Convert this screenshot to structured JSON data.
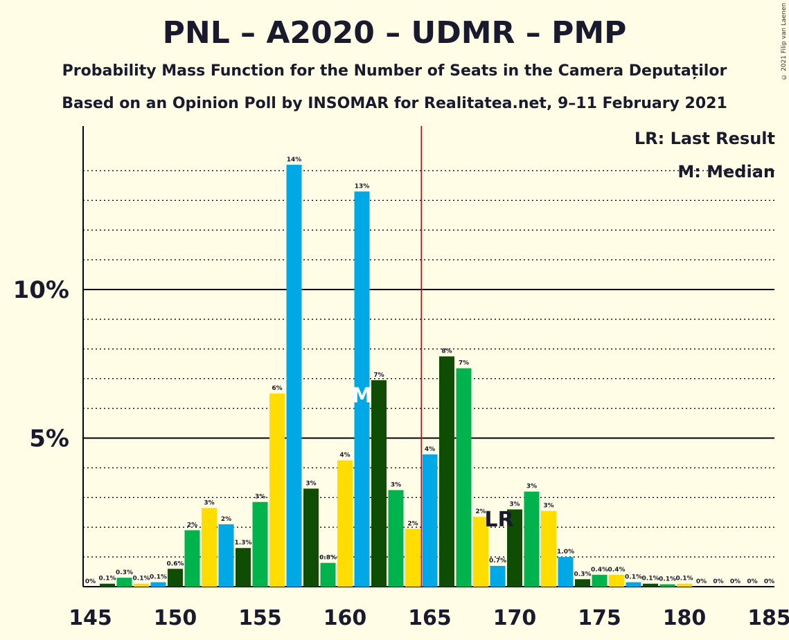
{
  "header": {
    "title": "PNL – A2020 – UDMR – PMP",
    "subtitle": "Probability Mass Function for the Number of Seats in the Camera Deputaților",
    "source": "Based on an Opinion Poll by INSOMAR for Realitatea.net, 9–11 February 2021",
    "copyright": "© 2021 Filip van Laenen"
  },
  "legend": {
    "lr": "LR: Last Result",
    "median": "M: Median"
  },
  "colors": {
    "blue": "#00A8E6",
    "dark_green": "#0F4D05",
    "green": "#00B34D",
    "yellow": "#FFDD00",
    "majority_line": "#CC0000",
    "background": "#FFFDE6"
  },
  "chart_data": {
    "type": "bar",
    "x": [
      145,
      146,
      147,
      148,
      149,
      150,
      151,
      152,
      153,
      154,
      155,
      156,
      157,
      158,
      159,
      160,
      161,
      162,
      163,
      164,
      165,
      166,
      167,
      168,
      169,
      170,
      171,
      172,
      173,
      174,
      175,
      176,
      177,
      178,
      179,
      180,
      181,
      182,
      183,
      184,
      185
    ],
    "values": [
      0,
      0.1,
      0.3,
      0.1,
      0.15,
      0.6,
      1.9,
      2.65,
      2.1,
      1.3,
      2.85,
      6.5,
      14.2,
      3.3,
      0.8,
      4.25,
      13.3,
      6.95,
      3.25,
      1.95,
      4.45,
      7.75,
      7.35,
      2.35,
      0.7,
      2.6,
      3.2,
      2.55,
      1.0,
      0.25,
      0.4,
      0.4,
      0.15,
      0.1,
      0.08,
      0.1,
      0,
      0,
      0,
      0,
      0
    ],
    "labels": [
      "0%",
      "0.1%",
      "0.3%",
      "0.1%",
      "0.1%",
      "0.6%",
      "2%",
      "3%",
      "2%",
      "1.3%",
      "3%",
      "6%",
      "14%",
      "3%",
      "0.8%",
      "4%",
      "13%",
      "7%",
      "3%",
      "2%",
      "4%",
      "8%",
      "7%",
      "2%",
      "0.7%",
      "3%",
      "3%",
      "3%",
      "1.0%",
      "0.3%",
      "0.4%",
      "0.4%",
      "0.1%",
      "0.1%",
      "0.1%",
      "0.1%",
      "0%",
      "0%",
      "0%",
      "0%",
      "0%"
    ],
    "bar_colors": [
      "dark_green",
      "dark_green",
      "green",
      "yellow",
      "blue",
      "dark_green",
      "green",
      "yellow",
      "blue",
      "dark_green",
      "green",
      "yellow",
      "blue",
      "dark_green",
      "green",
      "yellow",
      "blue",
      "dark_green",
      "green",
      "yellow",
      "blue",
      "dark_green",
      "green",
      "yellow",
      "blue",
      "dark_green",
      "green",
      "yellow",
      "blue",
      "dark_green",
      "green",
      "yellow",
      "blue",
      "dark_green",
      "green",
      "yellow",
      "blue",
      "dark_green",
      "green",
      "yellow",
      "blue"
    ],
    "xticks": [
      145,
      150,
      155,
      160,
      165,
      170,
      175,
      180,
      185
    ],
    "yticks": [
      {
        "value": 5,
        "label": "5%"
      },
      {
        "value": 10,
        "label": "10%"
      }
    ],
    "ylim": [
      0,
      15.5
    ],
    "xlim": [
      145,
      185
    ],
    "majority_line_x": 164.5,
    "median_x": 161,
    "median_label": "M",
    "last_result_x": 169,
    "last_result_label": "LR",
    "grid": "dotted minor every 1%, solid at 5% and 10%",
    "legend_position": "top-right"
  }
}
